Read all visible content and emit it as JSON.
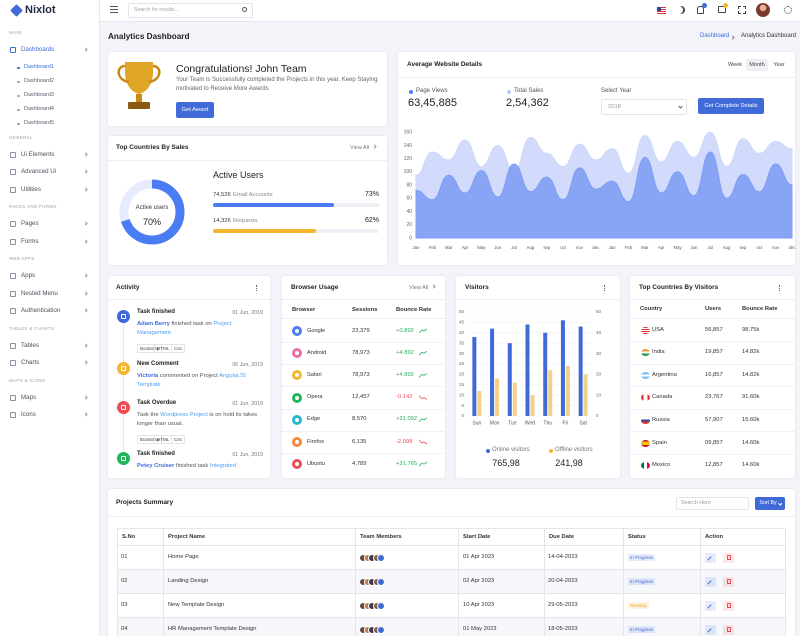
{
  "brand": "Nixlot",
  "header": {
    "search_placeholder": "Search for results..."
  },
  "sidebar": [
    {
      "section": "MAIN",
      "items": [
        {
          "label": "Dashboards",
          "children": [
            "Dashboard1",
            "Dashboard2",
            "Dashboard3",
            "Dashboard4",
            "Dashboard5"
          ]
        }
      ]
    },
    {
      "section": "GENERAL",
      "items": [
        {
          "label": "Ui Elements"
        },
        {
          "label": "Advanced Ui"
        },
        {
          "label": "Utilities"
        }
      ]
    },
    {
      "section": "PAGES AND FORMS",
      "items": [
        {
          "label": "Pages"
        },
        {
          "label": "Forms"
        }
      ]
    },
    {
      "section": "WEB APPS",
      "items": [
        {
          "label": "Apps"
        },
        {
          "label": "Nested Menu"
        },
        {
          "label": "Authentication"
        }
      ]
    },
    {
      "section": "TABLES & CHARTS",
      "items": [
        {
          "label": "Tables"
        },
        {
          "label": "Charts"
        }
      ]
    },
    {
      "section": "MAPS & ICONS",
      "items": [
        {
          "label": "Maps"
        },
        {
          "label": "Icons"
        }
      ]
    }
  ],
  "page": {
    "title": "Analytics Dashboard",
    "breadcrumb": [
      "Dashboard",
      "Analytics Dashboard"
    ]
  },
  "congrats": {
    "title": "Congratulations! John Team",
    "text": "Your Team is Successfully completed the Projects in this year. Keep Staying motivated to Receive More Awards",
    "button": "Get Award"
  },
  "sales_countries": {
    "title": "Top Countries By Sales",
    "view_all": "View All",
    "donut": {
      "label": "Active users",
      "value": 70,
      "value_label": "70%",
      "color": "#4a7cf3"
    },
    "heading": "Active Users",
    "stats": [
      {
        "count": "74,526",
        "label": "Email Accounts",
        "value": 73,
        "value_label": "73%",
        "color": "#4a7cf3"
      },
      {
        "count": "14,326",
        "label": "Requests",
        "value": 62,
        "value_label": "62%",
        "color": "#f5b731"
      }
    ]
  },
  "website": {
    "title": "Average Website Details",
    "tabs": [
      "Week",
      "Month",
      "Year"
    ],
    "active_tab": 1,
    "stats": [
      {
        "label": "Page Views",
        "value": "63,45,885",
        "color": "#4a7cf3"
      },
      {
        "label": "Total Sales",
        "value": "2,54,362",
        "color": "#b8c8f8"
      }
    ],
    "select_label": "Select Year",
    "select_value": "2018",
    "button": "Get Complete Details",
    "chart": {
      "type": "area",
      "categories": [
        "Jan",
        "Feb",
        "Mar",
        "Apr",
        "May",
        "Jun",
        "Jul",
        "Aug",
        "sep",
        "oct",
        "nov",
        "dec",
        "Jan",
        "Feb",
        "Mar",
        "Apr",
        "May",
        "Jun",
        "Jul",
        "Aug",
        "sep",
        "oct",
        "nov",
        "dec"
      ],
      "series": [
        {
          "color": "#cdd7fb",
          "values": [
            95,
            130,
            118,
            148,
            108,
            140,
            102,
            152,
            128,
            108,
            142,
            118,
            135,
            98,
            155,
            115,
            146,
            122,
            160,
            108,
            150,
            128,
            146,
            135
          ]
        },
        {
          "color": "#7f9df4",
          "values": [
            72,
            58,
            95,
            68,
            102,
            62,
            112,
            70,
            92,
            58,
            106,
            74,
            86,
            55,
            122,
            68,
            100,
            64,
            130,
            60,
            96,
            70,
            112,
            80
          ]
        }
      ],
      "ylim": [
        0,
        180
      ],
      "yticks": [
        0,
        20,
        40,
        60,
        80,
        100,
        120,
        140,
        160
      ]
    }
  },
  "activity": {
    "title": "Activity",
    "items": [
      {
        "title": "Task finished",
        "date": "01 Jun, 2019",
        "color": "#3f6ad8",
        "parts": [
          {
            "t": "Adam Berry",
            "k": "name"
          },
          {
            "t": " finished task on ",
            "k": "plain"
          },
          {
            "t": "Project Management",
            "k": "link"
          }
        ],
        "tags": [
          "Bootstrap",
          "HTML",
          "Css"
        ]
      },
      {
        "title": "New Comment",
        "date": "05 Jun, 2019",
        "color": "#f5b731",
        "parts": [
          {
            "t": "Victoria",
            "k": "name"
          },
          {
            "t": " commented on Project ",
            "k": "plain"
          },
          {
            "t": "AngularJS Template",
            "k": "link"
          }
        ]
      },
      {
        "title": "Task Overdue",
        "date": "01 Jun, 2019",
        "color": "#ef4b55",
        "parts": [
          {
            "t": "Task the ",
            "k": "plain"
          },
          {
            "t": "Wordpress Project",
            "k": "link"
          },
          {
            "t": " is on hold its takes longer than usual.",
            "k": "plain"
          }
        ],
        "tags": [
          "Bootstrap",
          "HTML",
          "Css"
        ]
      },
      {
        "title": "Task finished",
        "date": "01 Jun, 2019",
        "color": "#22b45a",
        "parts": [
          {
            "t": "Petey Cruiser",
            "k": "name"
          },
          {
            "t": " finished task ",
            "k": "plain"
          },
          {
            "t": "Integrated",
            "k": "link"
          }
        ]
      }
    ]
  },
  "browser": {
    "title": "Browser Usage",
    "view_all": "View All",
    "columns": [
      "Browser",
      "Sessions",
      "Bounce Rate"
    ],
    "rows": [
      {
        "name": "Google",
        "sessions": "23,379",
        "bounce": "+0.892",
        "color": "#4a7cf3"
      },
      {
        "name": "Android",
        "sessions": "78,973",
        "bounce": "+4.892",
        "color": "#ec6fa6"
      },
      {
        "name": "Safari",
        "sessions": "78,973",
        "bounce": "+4.892",
        "color": "#f5b731"
      },
      {
        "name": "Opera",
        "sessions": "12,457",
        "bounce": "-0.142",
        "color": "#22b45a"
      },
      {
        "name": "Edge",
        "sessions": "8,570",
        "bounce": "+21.092",
        "color": "#22b8cf"
      },
      {
        "name": "Firefox",
        "sessions": "6,135",
        "bounce": "-2.098",
        "color": "#f58a3c"
      },
      {
        "name": "Ubuntu",
        "sessions": "4,789",
        "bounce": "+31.765",
        "color": "#ef4b55"
      }
    ]
  },
  "visitors": {
    "title": "Visitors",
    "chart": {
      "type": "bar",
      "categories": [
        "Sun",
        "Mon",
        "Tue",
        "Wed",
        "Thu",
        "Fri",
        "Sat"
      ],
      "series": [
        {
          "name": "Online visitors",
          "color": "#3f6ad8",
          "values": [
            38,
            42,
            35,
            44,
            40,
            46,
            43
          ]
        },
        {
          "name": "Offline visitors",
          "color": "#f5d08a",
          "values": [
            12,
            18,
            16,
            10,
            22,
            24,
            20
          ],
          "axis": "y2"
        }
      ],
      "ylim": [
        0,
        50
      ],
      "yticks": [
        0,
        5,
        10,
        15,
        20,
        25,
        30,
        35,
        40,
        45,
        50
      ],
      "y2lim": [
        0,
        50
      ],
      "y2ticks": [
        0,
        10,
        20,
        30,
        40,
        50
      ]
    },
    "totals": [
      "765,98",
      "241,98"
    ]
  },
  "country_visitors": {
    "title": "Top Countries By Visitors",
    "columns": [
      "Country",
      "Users",
      "Bounce Rate"
    ],
    "rows": [
      {
        "country": "USA",
        "users": "56,857",
        "bounce": "98.75k"
      },
      {
        "country": "India",
        "users": "19,857",
        "bounce": "14.82k"
      },
      {
        "country": "Argentina",
        "users": "16,857",
        "bounce": "14.82k"
      },
      {
        "country": "Canada",
        "users": "23,767",
        "bounce": "91.60k"
      },
      {
        "country": "Russia",
        "users": "57,907",
        "bounce": "15.60k"
      },
      {
        "country": "Spain",
        "users": "09,857",
        "bounce": "14.60k"
      },
      {
        "country": "Mexico",
        "users": "12,857",
        "bounce": "14.60k"
      }
    ]
  },
  "projects": {
    "title": "Projects Summary",
    "search_placeholder": "Search Here",
    "sort_button": "Sort By",
    "columns": [
      "S.No",
      "Project Name",
      "Team Members",
      "Start Date",
      "Due Date",
      "Status",
      "Action"
    ],
    "rows": [
      {
        "no": "01",
        "name": "Home Page",
        "start": "01 Apr 2023",
        "due": "14-04-2023",
        "status": "In Progress",
        "status_color": "#3f6ad8"
      },
      {
        "no": "02",
        "name": "Landing Design",
        "start": "02 Apr 2023",
        "due": "20-04-2023",
        "status": "In Progress",
        "status_color": "#3f6ad8"
      },
      {
        "no": "03",
        "name": "New Template Design",
        "start": "10 Apr 2023",
        "due": "29-05-2023",
        "status": "Pending",
        "status_color": "#f5a623"
      },
      {
        "no": "04",
        "name": "HR Management Template Design",
        "start": "01 May 2023",
        "due": "18-05-2023",
        "status": "In Progress",
        "status_color": "#3f6ad8"
      }
    ]
  }
}
